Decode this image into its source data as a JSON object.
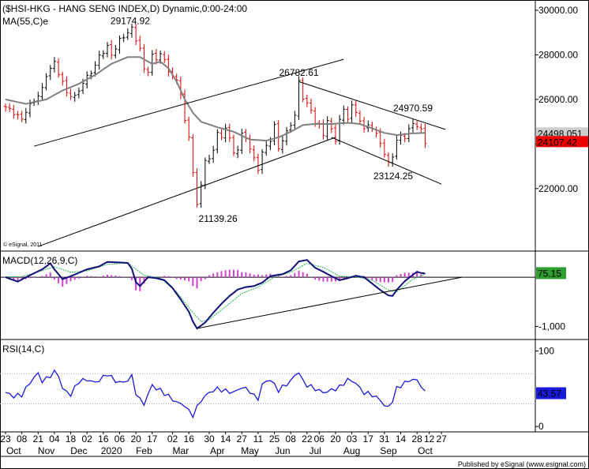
{
  "chart_data": {
    "type": "line",
    "title": "($HSI-HKG - HANG SENG INDEX,D) Dynamic,0:00-24:00",
    "main": {
      "type": "ohlc",
      "indicator_label": "MA(55,C)e",
      "y_ticks": [
        22000,
        24000,
        26000,
        28000,
        30000
      ],
      "y_tick_labels": [
        "22000.00",
        "",
        "26000.00",
        "28000.00",
        "30000.00"
      ],
      "ylim": [
        19300,
        30250
      ],
      "last_price": "24107.42",
      "ma_value": "24498.051",
      "copyright": "© eSignal, 2011",
      "annotations": [
        "29174.92",
        "26782.61",
        "24970.59",
        "23124.25",
        "21139.26"
      ],
      "trendlines": [
        {
          "x": [
            7,
            83
          ],
          "y": [
            23900,
            27800
          ]
        },
        {
          "x": [
            8,
            81
          ],
          "y": [
            19400,
            24300
          ]
        },
        {
          "x": [
            72,
            108
          ],
          "y": [
            26800,
            24650
          ]
        },
        {
          "x": [
            80,
            107
          ],
          "y": [
            24300,
            22200
          ]
        }
      ],
      "price_keypoints": [
        [
          0,
          25650
        ],
        [
          2,
          25400
        ],
        [
          4,
          25100
        ],
        [
          5,
          25500
        ],
        [
          7,
          25950
        ],
        [
          9,
          26450
        ],
        [
          10,
          27100
        ],
        [
          12,
          27650
        ],
        [
          13,
          27200
        ],
        [
          15,
          26300
        ],
        [
          17,
          26100
        ],
        [
          19,
          26750
        ],
        [
          21,
          27250
        ],
        [
          22,
          27500
        ],
        [
          23,
          27950
        ],
        [
          25,
          28350
        ],
        [
          26,
          28000
        ],
        [
          28,
          28650
        ],
        [
          30,
          29000
        ],
        [
          31,
          29174
        ],
        [
          33,
          28250
        ],
        [
          34,
          27350
        ],
        [
          35,
          27300
        ],
        [
          36,
          27950
        ],
        [
          37,
          27800
        ],
        [
          38,
          28100
        ],
        [
          40,
          27300
        ],
        [
          42,
          26800
        ],
        [
          43,
          26300
        ],
        [
          44,
          25000
        ],
        [
          45,
          24300
        ],
        [
          46,
          22800
        ],
        [
          47,
          21200
        ],
        [
          48,
          22200
        ],
        [
          49,
          23300
        ],
        [
          50,
          23250
        ],
        [
          51,
          23800
        ],
        [
          52,
          24500
        ],
        [
          53,
          24250
        ],
        [
          54,
          24800
        ],
        [
          56,
          23600
        ],
        [
          57,
          23800
        ],
        [
          58,
          24400
        ],
        [
          59,
          24300
        ],
        [
          60,
          23800
        ],
        [
          61,
          23300
        ],
        [
          62,
          22900
        ],
        [
          63,
          23600
        ],
        [
          64,
          23900
        ],
        [
          65,
          24200
        ],
        [
          66,
          24800
        ],
        [
          67,
          23800
        ],
        [
          68,
          24200
        ],
        [
          69,
          24500
        ],
        [
          70,
          24900
        ],
        [
          71,
          25300
        ],
        [
          72,
          26782
        ],
        [
          73,
          26100
        ],
        [
          74,
          25800
        ],
        [
          75,
          25500
        ],
        [
          76,
          25000
        ],
        [
          77,
          24800
        ],
        [
          78,
          24400
        ],
        [
          79,
          25100
        ],
        [
          80,
          24600
        ],
        [
          81,
          24200
        ],
        [
          82,
          25100
        ],
        [
          83,
          25500
        ],
        [
          84,
          25200
        ],
        [
          85,
          25700
        ],
        [
          86,
          25400
        ],
        [
          87,
          25100
        ],
        [
          88,
          24600
        ],
        [
          89,
          24900
        ],
        [
          90,
          24700
        ],
        [
          91,
          24400
        ],
        [
          92,
          24100
        ],
        [
          93,
          23500
        ],
        [
          94,
          23124
        ],
        [
          95,
          23500
        ],
        [
          96,
          24100
        ],
        [
          97,
          24400
        ],
        [
          98,
          24300
        ],
        [
          99,
          24600
        ],
        [
          100,
          24970
        ],
        [
          101,
          24800
        ],
        [
          102,
          24600
        ],
        [
          103,
          24107
        ]
      ],
      "ma_keypoints": [
        [
          0,
          26000
        ],
        [
          5,
          25800
        ],
        [
          10,
          26000
        ],
        [
          14,
          26400
        ],
        [
          18,
          26700
        ],
        [
          22,
          27100
        ],
        [
          26,
          27600
        ],
        [
          30,
          27900
        ],
        [
          33,
          27900
        ],
        [
          36,
          27600
        ],
        [
          38,
          27700
        ],
        [
          40,
          27400
        ],
        [
          42,
          26800
        ],
        [
          44,
          26000
        ],
        [
          46,
          25400
        ],
        [
          48,
          25000
        ],
        [
          52,
          24750
        ],
        [
          56,
          24550
        ],
        [
          60,
          24200
        ],
        [
          64,
          24150
        ],
        [
          67,
          24300
        ],
        [
          70,
          24550
        ],
        [
          73,
          24850
        ],
        [
          76,
          24900
        ],
        [
          80,
          24900
        ],
        [
          84,
          24950
        ],
        [
          87,
          24900
        ],
        [
          90,
          24700
        ],
        [
          93,
          24500
        ],
        [
          96,
          24400
        ],
        [
          100,
          24480
        ],
        [
          103,
          24498
        ]
      ]
    },
    "macd": {
      "label": "MACD(12,26,9,C)",
      "value": "75.15",
      "y_tick_labels": [
        "-1,000"
      ],
      "ylim": [
        -1200,
        450
      ],
      "trendlines": [
        {
          "x": [
            47,
            112
          ],
          "y": [
            -1040,
            0
          ]
        }
      ],
      "macd_keypoints": [
        [
          0,
          0
        ],
        [
          3,
          -90
        ],
        [
          6,
          40
        ],
        [
          9,
          160
        ],
        [
          11,
          280
        ],
        [
          12,
          160
        ],
        [
          14,
          -40
        ],
        [
          16,
          20
        ],
        [
          18,
          90
        ],
        [
          20,
          160
        ],
        [
          23,
          220
        ],
        [
          25,
          310
        ],
        [
          28,
          300
        ],
        [
          30,
          290
        ],
        [
          31,
          170
        ],
        [
          32,
          -100
        ],
        [
          33,
          -180
        ],
        [
          35,
          0
        ],
        [
          37,
          -20
        ],
        [
          39,
          -60
        ],
        [
          41,
          -220
        ],
        [
          43,
          -450
        ],
        [
          45,
          -700
        ],
        [
          46,
          -900
        ],
        [
          47,
          -1040
        ],
        [
          49,
          -920
        ],
        [
          51,
          -720
        ],
        [
          53,
          -540
        ],
        [
          55,
          -380
        ],
        [
          57,
          -250
        ],
        [
          59,
          -200
        ],
        [
          61,
          -180
        ],
        [
          63,
          -110
        ],
        [
          65,
          20
        ],
        [
          67,
          50
        ],
        [
          68,
          60
        ],
        [
          70,
          140
        ],
        [
          72,
          320
        ],
        [
          74,
          350
        ],
        [
          76,
          190
        ],
        [
          78,
          110
        ],
        [
          80,
          20
        ],
        [
          82,
          -60
        ],
        [
          84,
          -20
        ],
        [
          86,
          30
        ],
        [
          88,
          0
        ],
        [
          90,
          -130
        ],
        [
          92,
          -260
        ],
        [
          94,
          -370
        ],
        [
          95,
          -380
        ],
        [
          96,
          -260
        ],
        [
          98,
          -80
        ],
        [
          100,
          50
        ],
        [
          101,
          110
        ],
        [
          102,
          85
        ],
        [
          103,
          75
        ]
      ],
      "signal_keypoints": [
        [
          0,
          10
        ],
        [
          4,
          10
        ],
        [
          8,
          110
        ],
        [
          12,
          210
        ],
        [
          16,
          100
        ],
        [
          20,
          130
        ],
        [
          25,
          260
        ],
        [
          30,
          290
        ],
        [
          34,
          40
        ],
        [
          38,
          -20
        ],
        [
          42,
          -300
        ],
        [
          46,
          -720
        ],
        [
          48,
          -900
        ],
        [
          50,
          -860
        ],
        [
          54,
          -600
        ],
        [
          58,
          -330
        ],
        [
          62,
          -200
        ],
        [
          66,
          0
        ],
        [
          70,
          100
        ],
        [
          74,
          280
        ],
        [
          78,
          200
        ],
        [
          82,
          20
        ],
        [
          86,
          10
        ],
        [
          90,
          -60
        ],
        [
          94,
          -260
        ],
        [
          96,
          -300
        ],
        [
          100,
          -40
        ],
        [
          103,
          60
        ]
      ]
    },
    "rsi": {
      "label": "RSI(14,C)",
      "value": "43.57",
      "y_ticks": [
        0,
        100
      ],
      "y_tick_labels": [
        "0",
        "100"
      ],
      "levels": [
        30,
        70
      ],
      "ylim": [
        -5,
        112
      ],
      "rsi_keypoints": [
        [
          0,
          45
        ],
        [
          2,
          40
        ],
        [
          4,
          42
        ],
        [
          6,
          58
        ],
        [
          7,
          65
        ],
        [
          8,
          70
        ],
        [
          9,
          60
        ],
        [
          10,
          63
        ],
        [
          12,
          72
        ],
        [
          13,
          68
        ],
        [
          14,
          50
        ],
        [
          16,
          42
        ],
        [
          18,
          60
        ],
        [
          20,
          62
        ],
        [
          22,
          58
        ],
        [
          24,
          65
        ],
        [
          25,
          70
        ],
        [
          27,
          60
        ],
        [
          29,
          58
        ],
        [
          30,
          62
        ],
        [
          31,
          66
        ],
        [
          32,
          45
        ],
        [
          33,
          35
        ],
        [
          34,
          30
        ],
        [
          36,
          55
        ],
        [
          37,
          50
        ],
        [
          38,
          48
        ],
        [
          40,
          40
        ],
        [
          42,
          32
        ],
        [
          43,
          30
        ],
        [
          44,
          28
        ],
        [
          45,
          20
        ],
        [
          46,
          15
        ],
        [
          47,
          25
        ],
        [
          48,
          35
        ],
        [
          50,
          45
        ],
        [
          52,
          50
        ],
        [
          54,
          47
        ],
        [
          56,
          45
        ],
        [
          58,
          52
        ],
        [
          60,
          47
        ],
        [
          61,
          40
        ],
        [
          62,
          37
        ],
        [
          63,
          55
        ],
        [
          64,
          60
        ],
        [
          65,
          62
        ],
        [
          67,
          48
        ],
        [
          68,
          52
        ],
        [
          70,
          60
        ],
        [
          71,
          68
        ],
        [
          72,
          72
        ],
        [
          73,
          60
        ],
        [
          74,
          55
        ],
        [
          76,
          50
        ],
        [
          78,
          45
        ],
        [
          80,
          48
        ],
        [
          82,
          52
        ],
        [
          84,
          62
        ],
        [
          86,
          58
        ],
        [
          87,
          50
        ],
        [
          88,
          45
        ],
        [
          90,
          42
        ],
        [
          92,
          35
        ],
        [
          93,
          28
        ],
        [
          94,
          25
        ],
        [
          95,
          35
        ],
        [
          96,
          50
        ],
        [
          98,
          58
        ],
        [
          99,
          60
        ],
        [
          100,
          63
        ],
        [
          101,
          60
        ],
        [
          102,
          55
        ],
        [
          103,
          44
        ]
      ]
    },
    "x_ticks": [
      {
        "i": 0,
        "label": "23"
      },
      {
        "i": 4,
        "label": "08"
      },
      {
        "i": 8,
        "label": "21"
      },
      {
        "i": 12,
        "label": "04"
      },
      {
        "i": 16,
        "label": "18"
      },
      {
        "i": 20,
        "label": "02"
      },
      {
        "i": 24,
        "label": "16"
      },
      {
        "i": 28,
        "label": "06"
      },
      {
        "i": 32,
        "label": "20"
      },
      {
        "i": 36,
        "label": "17"
      },
      {
        "i": 41,
        "label": "02"
      },
      {
        "i": 45,
        "label": "16"
      },
      {
        "i": 50,
        "label": "30"
      },
      {
        "i": 54,
        "label": "14"
      },
      {
        "i": 58,
        "label": "27"
      },
      {
        "i": 62,
        "label": "11"
      },
      {
        "i": 66,
        "label": "25"
      },
      {
        "i": 70,
        "label": "08"
      },
      {
        "i": 74,
        "label": "22"
      },
      {
        "i": 77,
        "label": "06"
      },
      {
        "i": 81,
        "label": "20"
      },
      {
        "i": 85,
        "label": "03"
      },
      {
        "i": 89,
        "label": "17"
      },
      {
        "i": 93,
        "label": "31"
      },
      {
        "i": 97,
        "label": "14"
      },
      {
        "i": 101,
        "label": "28"
      },
      {
        "i": 104,
        "label": "12"
      },
      {
        "i": 107,
        "label": "27"
      }
    ],
    "x_months": [
      {
        "i": 2,
        "label": "Oct"
      },
      {
        "i": 10,
        "label": "Nov"
      },
      {
        "i": 18,
        "label": "Dec"
      },
      {
        "i": 26,
        "label": "2020"
      },
      {
        "i": 34,
        "label": "Feb"
      },
      {
        "i": 43,
        "label": "Mar"
      },
      {
        "i": 52,
        "label": "Apr"
      },
      {
        "i": 60,
        "label": "May"
      },
      {
        "i": 68,
        "label": "Jun"
      },
      {
        "i": 76,
        "label": "Jul"
      },
      {
        "i": 85,
        "label": "Aug"
      },
      {
        "i": 94,
        "label": "Sep"
      },
      {
        "i": 103,
        "label": "Oct"
      }
    ],
    "publisher": "Published by eSignal (www.esignal.com)"
  },
  "colors": {
    "ma_line": "#808080",
    "price_up": "#000000",
    "price_down": "#dd0000",
    "macd_line": "#10107a",
    "macd_signal": "#22bb55",
    "macd_hist": "#d040d0",
    "rsi_line": "#1a1add",
    "label_box_green": "#2e9e2e",
    "label_box_red": "#ee0000",
    "label_box_blue": "#1a1add",
    "last_ma_box": "#cccccc"
  }
}
